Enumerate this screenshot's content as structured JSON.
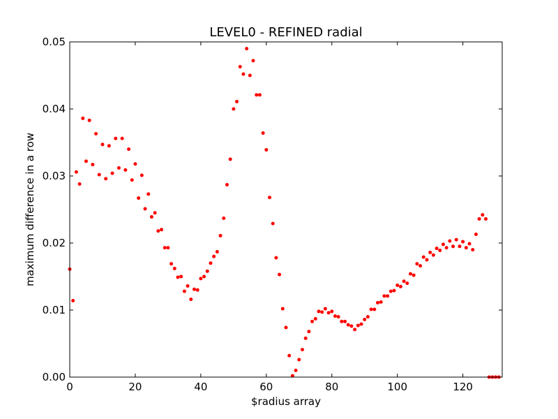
{
  "chart_data": {
    "type": "scatter",
    "title": "LEVEL0 - REFINED radial",
    "xlabel": "$radius array",
    "ylabel": "maximum difference in a row",
    "xlim": [
      0,
      132
    ],
    "ylim": [
      0,
      0.05
    ],
    "xticks": [
      0,
      20,
      40,
      60,
      80,
      100,
      120
    ],
    "yticks": [
      0.0,
      0.01,
      0.02,
      0.03,
      0.04,
      0.05
    ],
    "xtick_labels": [
      "0",
      "20",
      "40",
      "60",
      "80",
      "100",
      "120"
    ],
    "ytick_labels": [
      "0.00",
      "0.01",
      "0.02",
      "0.03",
      "0.04",
      "0.05"
    ],
    "grid": false,
    "marker_color": "#ff0000",
    "series": [
      {
        "x": [
          0,
          1,
          2,
          3,
          4,
          5,
          6,
          7,
          8,
          9,
          10,
          11,
          12,
          13,
          14,
          15,
          16,
          17,
          18,
          19,
          20,
          21,
          22,
          23,
          24,
          25,
          26,
          27,
          28,
          29,
          30,
          31,
          32,
          33,
          34,
          35,
          36,
          37,
          38,
          39,
          40,
          41,
          42,
          43,
          44,
          45,
          46,
          47,
          48,
          49,
          50,
          51,
          52,
          53,
          54,
          55,
          56,
          57,
          58,
          59,
          60,
          61,
          62,
          63,
          64,
          65,
          66,
          67,
          68,
          69,
          70,
          71,
          72,
          73,
          74,
          75,
          76,
          77,
          78,
          79,
          80,
          81,
          82,
          83,
          84,
          85,
          86,
          87,
          88,
          89,
          90,
          91,
          92,
          93,
          94,
          95,
          96,
          97,
          98,
          99,
          100,
          101,
          102,
          103,
          104,
          105,
          106,
          107,
          108,
          109,
          110,
          111,
          112,
          113,
          114,
          115,
          116,
          117,
          118,
          119,
          120,
          121,
          122,
          123,
          124,
          125,
          126,
          127,
          128,
          129,
          130,
          131
        ],
        "y": [
          0.0161,
          0.0114,
          0.0306,
          0.0288,
          0.0386,
          0.0322,
          0.0383,
          0.0317,
          0.0363,
          0.0302,
          0.0347,
          0.0296,
          0.0345,
          0.0304,
          0.0356,
          0.0312,
          0.0356,
          0.0309,
          0.034,
          0.0294,
          0.0318,
          0.0267,
          0.0301,
          0.0251,
          0.0273,
          0.0239,
          0.0245,
          0.0218,
          0.022,
          0.0193,
          0.0193,
          0.0169,
          0.0162,
          0.0149,
          0.015,
          0.0128,
          0.0136,
          0.0116,
          0.0131,
          0.013,
          0.0147,
          0.015,
          0.0158,
          0.017,
          0.018,
          0.0187,
          0.0211,
          0.0237,
          0.0287,
          0.0325,
          0.04,
          0.0411,
          0.0463,
          0.0452,
          0.049,
          0.045,
          0.0472,
          0.0421,
          0.0421,
          0.0364,
          0.0339,
          0.0268,
          0.0229,
          0.0178,
          0.0153,
          0.0102,
          0.0074,
          0.0032,
          0.0002,
          0.001,
          0.0026,
          0.0041,
          0.0058,
          0.0068,
          0.0083,
          0.0087,
          0.0098,
          0.0097,
          0.0102,
          0.0096,
          0.0098,
          0.0091,
          0.009,
          0.0083,
          0.0083,
          0.0078,
          0.0076,
          0.0071,
          0.0077,
          0.0079,
          0.0086,
          0.009,
          0.0101,
          0.0101,
          0.0111,
          0.0112,
          0.0121,
          0.0121,
          0.0128,
          0.0129,
          0.0137,
          0.0135,
          0.0143,
          0.014,
          0.0154,
          0.0152,
          0.0169,
          0.0166,
          0.0179,
          0.0175,
          0.0186,
          0.0182,
          0.0192,
          0.0189,
          0.0198,
          0.0193,
          0.0203,
          0.0195,
          0.0205,
          0.0195,
          0.0202,
          0.0193,
          0.0199,
          0.019,
          0.0213,
          0.0236,
          0.0242,
          0.0236,
          0.0,
          0.0,
          0.0,
          0.0
        ]
      }
    ]
  }
}
